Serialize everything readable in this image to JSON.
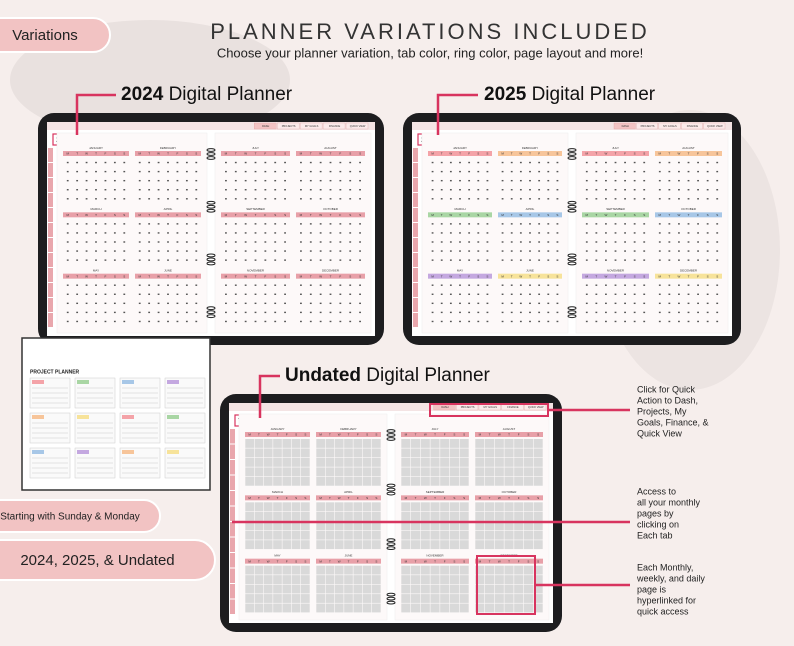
{
  "header": {
    "title": "PLANNER VARIATIONS INCLUDED",
    "subtitle": "Choose your planner variation, tab color, ring color, page layout and more!"
  },
  "badges": [
    "Variations",
    "Starting with Sunday & Monday",
    "2024, 2025, & Undated"
  ],
  "planners": [
    {
      "bold": "2024",
      "rest": "Digital Planner",
      "tab": "2024",
      "colors": [
        "#e8a0a8"
      ]
    },
    {
      "bold": "2025",
      "rest": "Digital Planner",
      "tab": "2025",
      "colors": [
        "#f4a3a8",
        "#f7c59a",
        "#a9d6a4",
        "#a7c7e7",
        "#c4a8e0",
        "#f7e39a"
      ]
    },
    {
      "bold": "Undated",
      "rest": "Digital Planner",
      "tab": "YEAR",
      "colors": [
        "#e8a0a8"
      ]
    }
  ],
  "tabs": [
    "DASH",
    "PROJECTS",
    "MY GOALS",
    "FINANCE",
    "QUICK VIEW"
  ],
  "months": [
    "JANUARY",
    "FEBRUARY",
    "MARCH",
    "APRIL",
    "MAY",
    "JUNE",
    "JULY",
    "AUGUST",
    "SEPTEMBER",
    "OCTOBER",
    "NOVEMBER",
    "DECEMBER"
  ],
  "weekdays": [
    "M",
    "T",
    "W",
    "T",
    "F",
    "S",
    "S"
  ],
  "thumbnail": {
    "title": "PROJECT PLANNER"
  },
  "annotations": [
    [
      "Click for Quick",
      "Action to Dash,",
      "Projects, My",
      "Goals, Finance, &",
      "Quick View"
    ],
    [
      "Access to",
      "all your monthly",
      "pages by",
      "clicking on",
      "Each tab"
    ],
    [
      "Each Monthly,",
      "weekly, and daily",
      "page is",
      "hyperlinked for",
      "quick access"
    ]
  ]
}
